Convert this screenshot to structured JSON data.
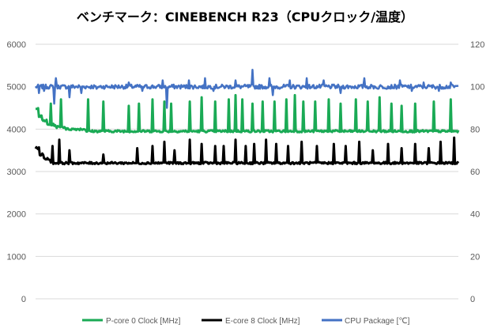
{
  "chart_data": {
    "type": "line",
    "title": "ベンチマーク：CINEBENCH R23（CPUクロック/温度）",
    "xlabel": "",
    "ylabel": "",
    "ylim": [
      0,
      6000
    ],
    "y2lim": [
      0,
      120
    ],
    "grid": "horizontal",
    "legend_position": "bottom",
    "y_ticks": [
      "0",
      "1000",
      "2000",
      "3000",
      "4000",
      "5000",
      "6000"
    ],
    "y2_ticks": [
      "0",
      "20",
      "40",
      "60",
      "80",
      "100",
      "120"
    ],
    "sample_count": 500,
    "series": [
      {
        "name": "P-core 0 Clock [MHz]",
        "axis": "left",
        "color": "#1aaa55",
        "baseline": 3950,
        "initial": [
          [
            0,
            4500
          ],
          [
            4,
            4300
          ],
          [
            8,
            4200
          ],
          [
            14,
            4100
          ],
          [
            24,
            4050
          ],
          [
            36,
            4000
          ],
          [
            60,
            3950
          ]
        ],
        "spikes": [
          [
            18,
            4600
          ],
          [
            30,
            4700
          ],
          [
            62,
            4700
          ],
          [
            80,
            4650
          ],
          [
            110,
            4550
          ],
          [
            122,
            4600
          ],
          [
            138,
            4700
          ],
          [
            152,
            4650
          ],
          [
            160,
            4600
          ],
          [
            182,
            4650
          ],
          [
            196,
            4750
          ],
          [
            212,
            4650
          ],
          [
            228,
            4700
          ],
          [
            236,
            4800
          ],
          [
            244,
            4700
          ],
          [
            256,
            4600
          ],
          [
            268,
            4650
          ],
          [
            282,
            4650
          ],
          [
            296,
            4700
          ],
          [
            306,
            4800
          ],
          [
            316,
            4650
          ],
          [
            330,
            4650
          ],
          [
            346,
            4700
          ],
          [
            360,
            4600
          ],
          [
            378,
            4700
          ],
          [
            392,
            4650
          ],
          [
            406,
            4750
          ],
          [
            420,
            4600
          ],
          [
            432,
            4550
          ],
          [
            448,
            4600
          ],
          [
            470,
            4650
          ],
          [
            490,
            4700
          ]
        ]
      },
      {
        "name": "E-core 8 Clock [MHz]",
        "axis": "left",
        "color": "#000000",
        "baseline": 3200,
        "initial": [
          [
            0,
            3550
          ],
          [
            5,
            3400
          ],
          [
            10,
            3300
          ],
          [
            18,
            3200
          ]
        ],
        "spikes": [
          [
            20,
            3600
          ],
          [
            28,
            3750
          ],
          [
            40,
            3500
          ],
          [
            80,
            3400
          ],
          [
            120,
            3550
          ],
          [
            138,
            3600
          ],
          [
            152,
            3700
          ],
          [
            164,
            3500
          ],
          [
            182,
            3750
          ],
          [
            196,
            3650
          ],
          [
            212,
            3600
          ],
          [
            222,
            3600
          ],
          [
            236,
            3750
          ],
          [
            248,
            3600
          ],
          [
            258,
            3650
          ],
          [
            272,
            3750
          ],
          [
            284,
            3650
          ],
          [
            298,
            3600
          ],
          [
            314,
            3700
          ],
          [
            332,
            3600
          ],
          [
            352,
            3650
          ],
          [
            366,
            3600
          ],
          [
            382,
            3700
          ],
          [
            398,
            3500
          ],
          [
            416,
            3650
          ],
          [
            432,
            3550
          ],
          [
            448,
            3650
          ],
          [
            464,
            3550
          ],
          [
            478,
            3700
          ],
          [
            494,
            3800
          ]
        ]
      },
      {
        "name": "CPU Package [℃]",
        "axis": "right",
        "color": "#4472c4",
        "baseline": 100,
        "initial": [
          [
            0,
            100
          ]
        ],
        "spikes": [
          [
            4,
            97
          ],
          [
            10,
            98
          ],
          [
            22,
            92
          ],
          [
            24,
            104
          ],
          [
            40,
            95
          ],
          [
            54,
            97
          ],
          [
            72,
            99
          ],
          [
            110,
            102
          ],
          [
            126,
            98
          ],
          [
            150,
            103
          ],
          [
            155,
            90
          ],
          [
            181,
            103
          ],
          [
            200,
            104
          ],
          [
            210,
            98
          ],
          [
            236,
            103
          ],
          [
            256,
            108
          ],
          [
            276,
            104
          ],
          [
            280,
            96
          ],
          [
            300,
            103
          ],
          [
            320,
            104
          ],
          [
            340,
            103
          ],
          [
            360,
            97
          ],
          [
            388,
            104
          ],
          [
            404,
            99
          ],
          [
            430,
            103
          ],
          [
            444,
            98
          ],
          [
            458,
            102
          ],
          [
            476,
            98
          ],
          [
            490,
            102
          ]
        ]
      }
    ]
  }
}
